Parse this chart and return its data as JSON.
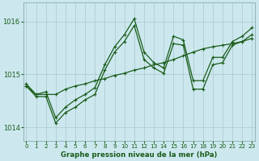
{
  "title": "Graphe pression niveau de la mer (hPa)",
  "background_color": "#cce8ee",
  "grid_color": "#b0cdd4",
  "line_color": "#1a5c1a",
  "ylim": [
    1013.75,
    1016.35
  ],
  "yticks": [
    1014,
    1015,
    1016
  ],
  "xlim": [
    -0.3,
    23.3
  ],
  "xticks": [
    0,
    1,
    2,
    3,
    4,
    5,
    6,
    7,
    8,
    9,
    10,
    11,
    12,
    13,
    14,
    15,
    16,
    17,
    18,
    19,
    20,
    21,
    22,
    23
  ],
  "series": [
    [
      1014.82,
      1014.62,
      1014.67,
      1014.18,
      1014.38,
      1014.52,
      1014.62,
      1014.75,
      1015.18,
      1015.52,
      1015.75,
      1016.05,
      1015.42,
      1015.22,
      1015.12,
      1015.72,
      1015.65,
      1014.88,
      1014.88,
      1015.32,
      1015.32,
      1015.62,
      1015.72,
      1015.88
    ],
    [
      1014.78,
      1014.62,
      1014.62,
      1014.62,
      1014.72,
      1014.78,
      1014.82,
      1014.88,
      1014.92,
      1014.98,
      1015.02,
      1015.08,
      1015.12,
      1015.18,
      1015.22,
      1015.28,
      1015.35,
      1015.42,
      1015.48,
      1015.52,
      1015.55,
      1015.58,
      1015.62,
      1015.68
    ],
    [
      1014.78,
      1014.58,
      1014.58,
      1014.08,
      1014.28,
      1014.38,
      1014.52,
      1014.62,
      1015.08,
      1015.42,
      1015.62,
      1015.92,
      1015.28,
      1015.12,
      1015.02,
      1015.58,
      1015.55,
      1014.72,
      1014.72,
      1015.18,
      1015.22,
      1015.55,
      1015.62,
      1015.75
    ]
  ],
  "figsize": [
    3.2,
    2.0
  ],
  "dpi": 100
}
